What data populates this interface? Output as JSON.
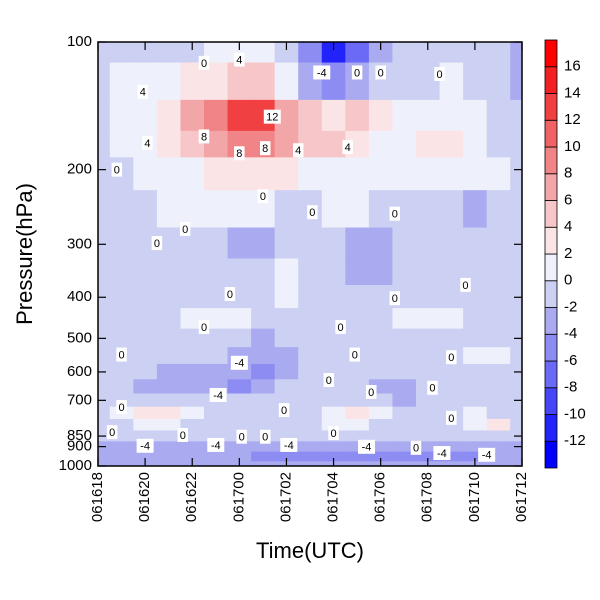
{
  "chart_data": {
    "type": "contour",
    "x_label": "Time(UTC)",
    "y_label": "Pressure(hPa)",
    "xlim": [
      0,
      18
    ],
    "xticks": [
      {
        "value": 0,
        "label": "061618"
      },
      {
        "value": 2,
        "label": "061620"
      },
      {
        "value": 4,
        "label": "061622"
      },
      {
        "value": 6,
        "label": "061700"
      },
      {
        "value": 8,
        "label": "061702"
      },
      {
        "value": 10,
        "label": "061704"
      },
      {
        "value": 12,
        "label": "061706"
      },
      {
        "value": 14,
        "label": "061708"
      },
      {
        "value": 16,
        "label": "061710"
      },
      {
        "value": 18,
        "label": "061712"
      }
    ],
    "ylim": [
      1000,
      100
    ],
    "yscale": "log",
    "yticks": [
      100,
      200,
      300,
      400,
      500,
      600,
      700,
      850,
      900,
      1000
    ],
    "x": [
      0,
      1,
      2,
      3,
      4,
      5,
      6,
      7,
      8,
      9,
      10,
      11,
      12,
      13,
      14,
      15,
      16,
      17,
      18
    ],
    "y": [
      100,
      125,
      150,
      175,
      200,
      250,
      300,
      350,
      400,
      450,
      500,
      550,
      600,
      650,
      700,
      750,
      800,
      850,
      900,
      950,
      1000
    ],
    "z": [
      [
        -1,
        -1,
        -1,
        -1,
        -1,
        0,
        0,
        1,
        -2,
        -6,
        -11,
        -8,
        -4,
        -2,
        -2,
        -1,
        -1,
        -1,
        -3
      ],
      [
        -1,
        0,
        0,
        1,
        2,
        3,
        4,
        4,
        0,
        -4,
        -6,
        -4,
        -2,
        -1,
        -1,
        0,
        -1,
        -1,
        -3
      ],
      [
        -1,
        0,
        1,
        3,
        6,
        9,
        12,
        13,
        7,
        4,
        3,
        5,
        2,
        0,
        1,
        1,
        0,
        -1,
        -2
      ],
      [
        -1,
        0,
        1,
        2,
        4,
        6,
        8,
        9,
        6,
        5,
        4,
        3,
        1,
        1,
        2,
        2,
        1,
        -1,
        -1
      ],
      [
        -1,
        -1,
        0,
        1,
        1,
        2,
        3,
        3,
        2,
        1,
        1,
        1,
        0,
        0,
        1,
        1,
        0,
        0,
        -1
      ],
      [
        -1,
        -1,
        -1,
        0,
        0,
        0,
        0,
        0,
        -1,
        -1,
        0,
        0,
        -1,
        -1,
        -1,
        -1,
        -3,
        -1,
        -2
      ],
      [
        -1,
        -1,
        -1,
        -1,
        -1,
        -1,
        -3,
        -3,
        -1,
        -1,
        -1,
        -3,
        -3,
        -1,
        -1,
        -1,
        -1,
        -1,
        -1
      ],
      [
        -1,
        -1,
        -1,
        -1,
        -1,
        -1,
        -2,
        -1,
        0,
        -1,
        -1,
        -3,
        -3,
        -1,
        -1,
        -1,
        -1,
        -1,
        -1
      ],
      [
        -1,
        -1,
        -1,
        -1,
        -1,
        -1,
        -1,
        -1,
        1,
        -1,
        -1,
        -2,
        -1,
        -1,
        -1,
        -1,
        -1,
        -1,
        -1
      ],
      [
        -1,
        -1,
        -1,
        -1,
        0,
        1,
        1,
        -1,
        -1,
        -1,
        -1,
        -1,
        -1,
        0,
        1,
        1,
        -1,
        -1,
        -1
      ],
      [
        -1,
        -1,
        -1,
        -1,
        -1,
        -1,
        -1,
        -3,
        -1,
        -1,
        -1,
        -1,
        -1,
        -1,
        -1,
        -1,
        -1,
        -1,
        -1
      ],
      [
        -1,
        -1,
        -1,
        -1,
        -1,
        -1,
        -3,
        -4,
        -3,
        -1,
        -1,
        -1,
        -1,
        -1,
        -1,
        -1,
        0,
        1,
        -1
      ],
      [
        -1,
        -1,
        -1,
        -3,
        -3,
        -3,
        -3,
        -5,
        -3,
        -1,
        -1,
        -1,
        -1,
        -1,
        -1,
        -1,
        -1,
        -1,
        -1
      ],
      [
        -1,
        -1,
        -3,
        -3,
        -3,
        -4,
        -5,
        -3,
        -1,
        -1,
        -1,
        -1,
        -3,
        -3,
        -1,
        -1,
        -1,
        -1,
        -1
      ],
      [
        -1,
        -1,
        -1,
        -1,
        -1,
        -1,
        -1,
        -1,
        -1,
        -1,
        -1,
        -1,
        -1,
        -3,
        -1,
        -1,
        -1,
        -1,
        -1
      ],
      [
        -1,
        1,
        2,
        2,
        1,
        -1,
        -1,
        -1,
        -1,
        -1,
        1,
        3,
        1,
        -1,
        -1,
        -1,
        1,
        -1,
        -1
      ],
      [
        -1,
        -1,
        1,
        1,
        -1,
        -1,
        -1,
        -1,
        -1,
        -1,
        1,
        1,
        -1,
        -1,
        -1,
        -1,
        1,
        2,
        -1
      ],
      [
        -1,
        -1,
        -1,
        -1,
        -1,
        -1,
        -1,
        -1,
        -1,
        -1,
        -1,
        -1,
        -1,
        -1,
        -1,
        -1,
        -1,
        -1,
        -1
      ],
      [
        -3,
        -3,
        -3,
        -3,
        -3,
        -3,
        -3,
        -3,
        -3,
        -3,
        -3,
        -3,
        -3,
        -3,
        -3,
        -3,
        -3,
        -3,
        -3
      ],
      [
        -3,
        -3,
        -3,
        -3,
        -3,
        -3,
        -3,
        -5,
        -5,
        -5,
        -5,
        -6,
        -5,
        -5,
        -5,
        -5,
        -5,
        -3,
        -3
      ],
      [
        -3,
        -3,
        -3,
        -3,
        -3,
        -3,
        -3,
        -3,
        -3,
        -3,
        -3,
        -3,
        -3,
        -3,
        -3,
        -3,
        -3,
        -3,
        -3
      ]
    ],
    "levels": [
      -12,
      -10,
      -8,
      -6,
      -4,
      -2,
      0,
      2,
      4,
      6,
      8,
      10,
      12,
      14,
      16
    ],
    "colors": [
      "#0000ff",
      "#2222fb",
      "#4646f8",
      "#6a6af6",
      "#8c8cf2",
      "#aaaaf0",
      "#ccd0f2",
      "#eef0fb",
      "#fbe4e6",
      "#f6c6c8",
      "#f2a6a8",
      "#f08486",
      "#f06264",
      "#f04042",
      "#f22022",
      "#ff0000"
    ],
    "contour_labels": [
      {
        "x": 4.5,
        "y": 112,
        "value": 0
      },
      {
        "x": 6.0,
        "y": 110,
        "value": 4
      },
      {
        "x": 9.5,
        "y": 118,
        "value": -4
      },
      {
        "x": 11.0,
        "y": 118,
        "value": 0
      },
      {
        "x": 12.0,
        "y": 118,
        "value": 0
      },
      {
        "x": 14.5,
        "y": 119,
        "value": 0
      },
      {
        "x": 1.9,
        "y": 131,
        "value": 4
      },
      {
        "x": 7.4,
        "y": 150,
        "value": 12
      },
      {
        "x": 4.5,
        "y": 167,
        "value": 8
      },
      {
        "x": 6.0,
        "y": 183,
        "value": 8
      },
      {
        "x": 7.1,
        "y": 178,
        "value": 8
      },
      {
        "x": 8.5,
        "y": 180,
        "value": 4
      },
      {
        "x": 10.6,
        "y": 177,
        "value": 4
      },
      {
        "x": 2.1,
        "y": 173,
        "value": 4
      },
      {
        "x": 0.8,
        "y": 200,
        "value": 0
      },
      {
        "x": 7.0,
        "y": 231,
        "value": 0
      },
      {
        "x": 9.1,
        "y": 252,
        "value": 0
      },
      {
        "x": 12.6,
        "y": 254,
        "value": 0
      },
      {
        "x": 3.7,
        "y": 276,
        "value": 0
      },
      {
        "x": 2.5,
        "y": 298,
        "value": 0
      },
      {
        "x": 15.6,
        "y": 374,
        "value": 0
      },
      {
        "x": 5.6,
        "y": 393,
        "value": 0
      },
      {
        "x": 12.6,
        "y": 402,
        "value": 0
      },
      {
        "x": 4.5,
        "y": 470,
        "value": 0
      },
      {
        "x": 10.3,
        "y": 470,
        "value": 0
      },
      {
        "x": 1.0,
        "y": 546,
        "value": 0
      },
      {
        "x": 6.0,
        "y": 571,
        "value": -4
      },
      {
        "x": 10.9,
        "y": 546,
        "value": 0
      },
      {
        "x": 15.0,
        "y": 554,
        "value": 0
      },
      {
        "x": 9.8,
        "y": 627,
        "value": 0
      },
      {
        "x": 5.1,
        "y": 680,
        "value": -4
      },
      {
        "x": 11.6,
        "y": 669,
        "value": 0
      },
      {
        "x": 14.2,
        "y": 654,
        "value": 0
      },
      {
        "x": 1.0,
        "y": 726,
        "value": 0
      },
      {
        "x": 7.9,
        "y": 738,
        "value": 0
      },
      {
        "x": 3.6,
        "y": 845,
        "value": 0
      },
      {
        "x": 10.0,
        "y": 836,
        "value": 0
      },
      {
        "x": 15.0,
        "y": 770,
        "value": 0
      },
      {
        "x": 0.6,
        "y": 832,
        "value": 0
      },
      {
        "x": 2.0,
        "y": 896,
        "value": -4
      },
      {
        "x": 5.0,
        "y": 892,
        "value": -4
      },
      {
        "x": 6.1,
        "y": 853,
        "value": 0
      },
      {
        "x": 7.1,
        "y": 853,
        "value": 0
      },
      {
        "x": 8.1,
        "y": 892,
        "value": -4
      },
      {
        "x": 11.4,
        "y": 901,
        "value": -4
      },
      {
        "x": 13.5,
        "y": 906,
        "value": 0
      },
      {
        "x": 14.6,
        "y": 932,
        "value": -4
      },
      {
        "x": 16.5,
        "y": 941,
        "value": -4
      }
    ]
  }
}
